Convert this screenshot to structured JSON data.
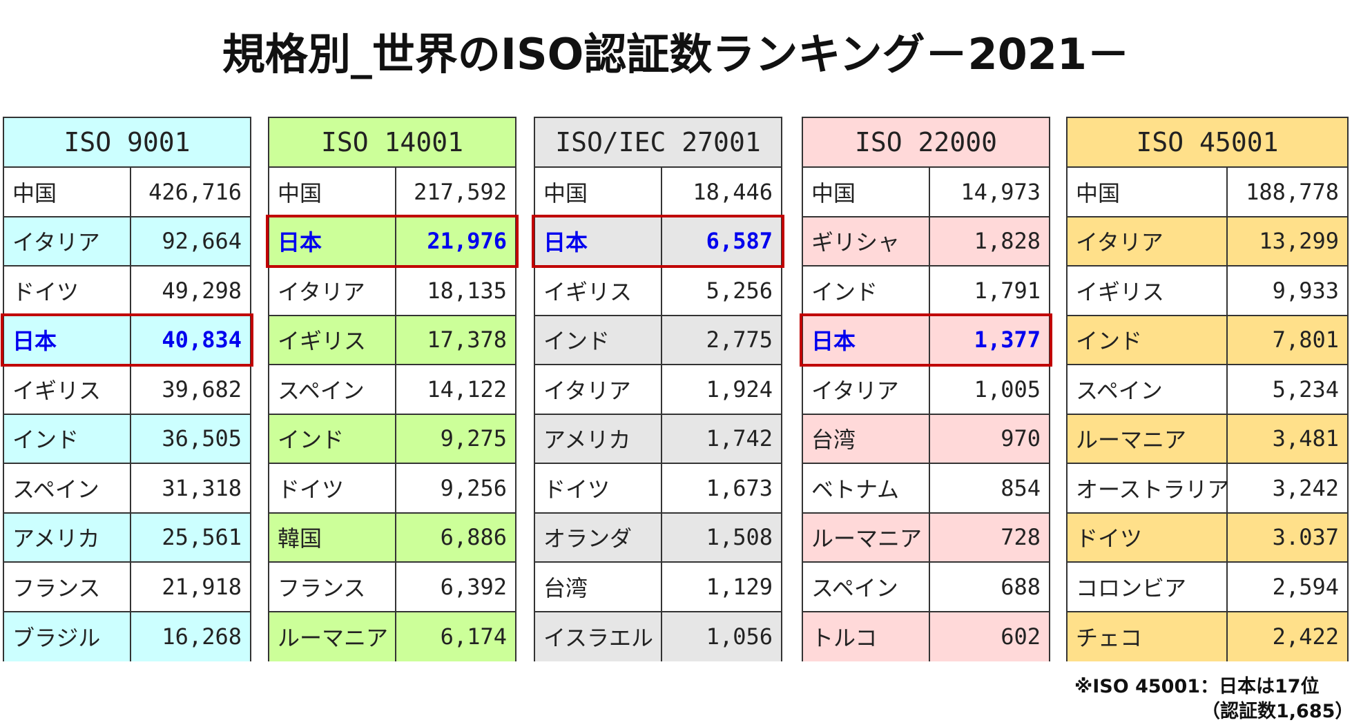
{
  "title": "規格別_世界のISO認証数ランキング－2021－",
  "tables": [
    {
      "header": "ISO 9001",
      "color": "#ccffff",
      "highlight_row": 3,
      "rows": [
        [
          "中国",
          "426,716"
        ],
        [
          "イタリア",
          "92,664"
        ],
        [
          "ドイツ",
          "49,298"
        ],
        [
          "日本",
          "40,834"
        ],
        [
          "イギリス",
          "39,682"
        ],
        [
          "インド",
          "36,505"
        ],
        [
          "スペイン",
          "31,318"
        ],
        [
          "アメリカ",
          "25,561"
        ],
        [
          "フランス",
          "21,918"
        ],
        [
          "ブラジル",
          "16,268"
        ]
      ]
    },
    {
      "header": "ISO 14001",
      "color": "#ccff99",
      "highlight_row": 1,
      "rows": [
        [
          "中国",
          "217,592"
        ],
        [
          "日本",
          "21,976"
        ],
        [
          "イタリア",
          "18,135"
        ],
        [
          "イギリス",
          "17,378"
        ],
        [
          "スペイン",
          "14,122"
        ],
        [
          "インド",
          "9,275"
        ],
        [
          "ドイツ",
          "9,256"
        ],
        [
          "韓国",
          "6,886"
        ],
        [
          "フランス",
          "6,392"
        ],
        [
          "ルーマニア",
          "6,174"
        ]
      ]
    },
    {
      "header": "ISO/IEC 27001",
      "color": "#e6e6e6",
      "highlight_row": 1,
      "rows": [
        [
          "中国",
          "18,446"
        ],
        [
          "日本",
          "6,587"
        ],
        [
          "イギリス",
          "5,256"
        ],
        [
          "インド",
          "2,775"
        ],
        [
          "イタリア",
          "1,924"
        ],
        [
          "アメリカ",
          "1,742"
        ],
        [
          "ドイツ",
          "1,673"
        ],
        [
          "オランダ",
          "1,508"
        ],
        [
          "台湾",
          "1,129"
        ],
        [
          "イスラエル",
          "1,056"
        ]
      ]
    },
    {
      "header": "ISO 22000",
      "color": "#ffd9d9",
      "highlight_row": 3,
      "rows": [
        [
          "中国",
          "14,973"
        ],
        [
          "ギリシャ",
          "1,828"
        ],
        [
          "インド",
          "1,791"
        ],
        [
          "日本",
          "1,377"
        ],
        [
          "イタリア",
          "1,005"
        ],
        [
          "台湾",
          "970"
        ],
        [
          "ベトナム",
          "854"
        ],
        [
          "ルーマニア",
          "728"
        ],
        [
          "スペイン",
          "688"
        ],
        [
          "トルコ",
          "602"
        ]
      ]
    },
    {
      "header": "ISO 45001",
      "color": "#ffe08a",
      "rows": [
        [
          "中国",
          "188,778"
        ],
        [
          "イタリア",
          "13,299"
        ],
        [
          "イギリス",
          "9,933"
        ],
        [
          "インド",
          "7,801"
        ],
        [
          "スペイン",
          "5,234"
        ],
        [
          "ルーマニア",
          "3,481"
        ],
        [
          "オーストラリア",
          "3,242"
        ],
        [
          "ドイツ",
          "3.037"
        ],
        [
          "コロンビア",
          "2,594"
        ],
        [
          "チェコ",
          "2,422"
        ]
      ]
    }
  ],
  "footnote": [
    "※ISO 45001：日本は17位",
    "（認証数1,685）"
  ]
}
